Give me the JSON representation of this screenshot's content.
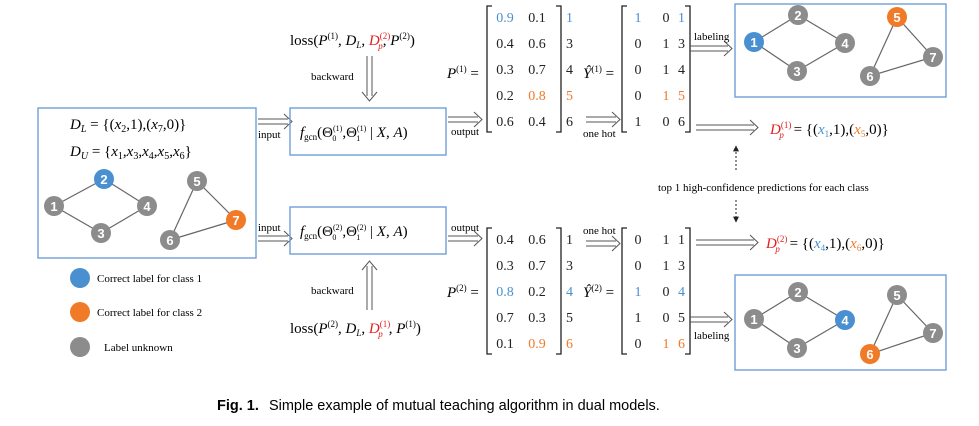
{
  "colors": {
    "blue": "#4a90d0",
    "orange": "#f07a28",
    "gray": "#8c8c8c",
    "red": "#e02020",
    "box": "#6fa0d8"
  },
  "top_box": {
    "dl": "D_L = {(x_2,1),(x_7,0)}",
    "du": "D_U = {x_1,x_3,x_4,x_5,x_6}"
  },
  "nodes": [
    "1",
    "2",
    "3",
    "4",
    "5",
    "6",
    "7"
  ],
  "legend": {
    "class1": "Correct label for class 1",
    "class2": "Correct label for class 2",
    "unknown": "Label unknown"
  },
  "arrows": {
    "input": "input",
    "output": "output",
    "backward": "backward",
    "one_hot": "one hot",
    "labeling": "labeling",
    "top1": "top 1 high-confidence predictions for each class"
  },
  "model1": {
    "fgcn": "f_gcn(Θ0(1),Θ1(1) | X, A)",
    "loss": "loss(P(1), D_L, D_p(2), P(2))",
    "P_label": "P(1) =",
    "P_rows": [
      [
        "0.9",
        "0.1",
        "1"
      ],
      [
        "0.4",
        "0.6",
        "3"
      ],
      [
        "0.3",
        "0.7",
        "4"
      ],
      [
        "0.2",
        "0.8",
        "5"
      ],
      [
        "0.6",
        "0.4",
        "6"
      ]
    ],
    "Y_label": "Ŷ(1) =",
    "Y_rows": [
      [
        "1",
        "0",
        "1"
      ],
      [
        "0",
        "1",
        "3"
      ],
      [
        "0",
        "1",
        "4"
      ],
      [
        "0",
        "1",
        "5"
      ],
      [
        "1",
        "0",
        "6"
      ]
    ],
    "Dp": "D_p(1) = {(x_1,1),(x_5,0)}"
  },
  "model2": {
    "fgcn": "f_gcn(Θ0(2),Θ1(2) | X, A)",
    "loss": "loss(P(2), D_L, D_p(1), P(1))",
    "P_label": "P(2) =",
    "P_rows": [
      [
        "0.4",
        "0.6",
        "1"
      ],
      [
        "0.3",
        "0.7",
        "3"
      ],
      [
        "0.8",
        "0.2",
        "4"
      ],
      [
        "0.7",
        "0.3",
        "5"
      ],
      [
        "0.1",
        "0.9",
        "6"
      ]
    ],
    "Y_label": "Ŷ(2) =",
    "Y_rows": [
      [
        "0",
        "1",
        "1"
      ],
      [
        "0",
        "1",
        "3"
      ],
      [
        "1",
        "0",
        "4"
      ],
      [
        "1",
        "0",
        "5"
      ],
      [
        "0",
        "1",
        "6"
      ]
    ],
    "Dp": "D_p(2) = {(x_4,1),(x_6,0)}"
  },
  "caption": {
    "label": "Fig. 1.",
    "text": "Simple example of mutual teaching algorithm in dual models."
  }
}
